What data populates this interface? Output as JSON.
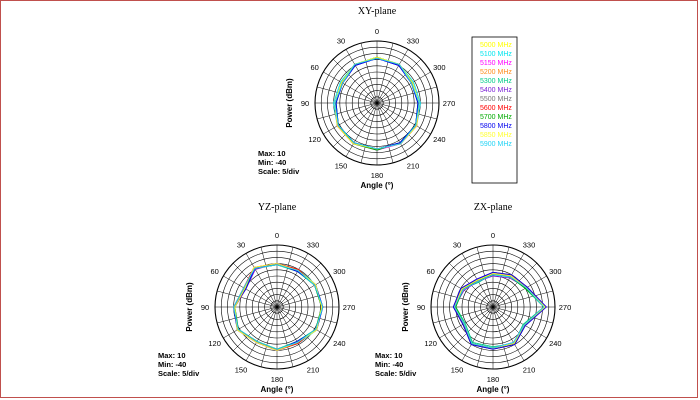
{
  "chart_data": [
    {
      "type": "polar",
      "title": "XY-plane",
      "angle_label": "Angle",
      "angle_unit": "(°)",
      "radial_label": "Power",
      "radial_unit": "(dBm)",
      "stats": {
        "max": "Max: 10",
        "min": "Min: -40",
        "scale": "Scale: 5/div"
      },
      "rlim": [
        -40,
        10
      ],
      "angle_ticks": [
        "0",
        "30",
        "60",
        "90",
        "120",
        "150",
        "180",
        "210",
        "240",
        "270",
        "300",
        "330"
      ],
      "angles": [
        0,
        30,
        60,
        90,
        120,
        150,
        180,
        210,
        240,
        270,
        300,
        330
      ],
      "series": [
        {
          "name": "5000 MHz",
          "values": [
            -3,
            -4,
            -7,
            -6,
            -3,
            -2,
            -3,
            -2,
            -3,
            -6,
            -7,
            -4
          ]
        },
        {
          "name": "5100 MHz",
          "values": [
            -3,
            -4,
            -6,
            -5,
            -3,
            -2,
            -3,
            -2,
            -3,
            -5,
            -6,
            -4
          ]
        },
        {
          "name": "5150 MHz",
          "values": [
            -4,
            -4,
            -7,
            -6,
            -3,
            -2,
            -2,
            -2,
            -3,
            -6,
            -7,
            -4
          ]
        },
        {
          "name": "5200 MHz",
          "values": [
            -3,
            -5,
            -7,
            -6,
            -4,
            -3,
            -3,
            -2,
            -4,
            -6,
            -7,
            -5
          ]
        },
        {
          "name": "5300 MHz",
          "values": [
            -4,
            -5,
            -8,
            -7,
            -4,
            -3,
            -3,
            -3,
            -4,
            -7,
            -8,
            -5
          ]
        },
        {
          "name": "5400 MHz",
          "values": [
            -4,
            -5,
            -8,
            -7,
            -3,
            -3,
            -2,
            -3,
            -3,
            -7,
            -8,
            -5
          ]
        },
        {
          "name": "5500 MHz",
          "values": [
            -3,
            -5,
            -7,
            -6,
            -4,
            -3,
            -3,
            -2,
            -4,
            -6,
            -7,
            -5
          ]
        },
        {
          "name": "5600 MHz",
          "values": [
            -4,
            -4,
            -8,
            -6,
            -3,
            -2,
            -3,
            -2,
            -3,
            -6,
            -8,
            -4
          ]
        },
        {
          "name": "5700 MHz",
          "values": [
            -3,
            -4,
            -7,
            -7,
            -4,
            -2,
            -2,
            -3,
            -4,
            -7,
            -7,
            -4
          ]
        },
        {
          "name": "5800 MHz",
          "values": [
            -4,
            -5,
            -8,
            -7,
            -4,
            -3,
            -3,
            -3,
            -4,
            -7,
            -8,
            -5
          ]
        },
        {
          "name": "5850 MHz",
          "values": [
            -3,
            -4,
            -7,
            -6,
            -3,
            -2,
            -3,
            -2,
            -3,
            -6,
            -7,
            -4
          ]
        },
        {
          "name": "5900 MHz",
          "values": [
            -4,
            -4,
            -8,
            -6,
            -4,
            -3,
            -3,
            -2,
            -4,
            -6,
            -8,
            -4
          ]
        }
      ]
    },
    {
      "type": "polar",
      "title": "YZ-plane",
      "angle_label": "Angle",
      "angle_unit": "(°)",
      "radial_label": "Power",
      "radial_unit": "(dBm)",
      "stats": {
        "max": "Max: 10",
        "min": "Min: -40",
        "scale": "Scale: 5/div"
      },
      "rlim": [
        -40,
        10
      ],
      "angle_ticks": [
        "0",
        "30",
        "60",
        "90",
        "120",
        "150",
        "180",
        "210",
        "240",
        "270",
        "300",
        "330"
      ],
      "angles": [
        0,
        30,
        60,
        90,
        120,
        150,
        180,
        210,
        240,
        270,
        300,
        330
      ],
      "series": [
        {
          "name": "5000 MHz",
          "values": [
            -5,
            -3,
            -10,
            -5,
            -3,
            -7,
            -5,
            -7,
            -3,
            -3,
            -4,
            -6
          ]
        },
        {
          "name": "5100 MHz",
          "values": [
            -5,
            -4,
            -9,
            -6,
            -3,
            -8,
            -5,
            -6,
            -3,
            -4,
            -4,
            -5
          ]
        },
        {
          "name": "5150 MHz",
          "values": [
            -6,
            -3,
            -10,
            -5,
            -4,
            -7,
            -6,
            -7,
            -4,
            -3,
            -5,
            -6
          ]
        },
        {
          "name": "5200 MHz",
          "values": [
            -5,
            -4,
            -11,
            -6,
            -3,
            -7,
            -5,
            -7,
            -3,
            -4,
            -4,
            -6
          ]
        },
        {
          "name": "5300 MHz",
          "values": [
            -6,
            -4,
            -10,
            -5,
            -4,
            -8,
            -6,
            -8,
            -4,
            -3,
            -5,
            -7
          ]
        },
        {
          "name": "5400 MHz",
          "values": [
            -5,
            -5,
            -11,
            -6,
            -4,
            -8,
            -5,
            -7,
            -4,
            -4,
            -5,
            -6
          ]
        },
        {
          "name": "5500 MHz",
          "values": [
            -6,
            -4,
            -10,
            -6,
            -3,
            -7,
            -6,
            -7,
            -3,
            -4,
            -4,
            -6
          ]
        },
        {
          "name": "5600 MHz",
          "values": [
            -5,
            -3,
            -9,
            -5,
            -4,
            -7,
            -5,
            -6,
            -4,
            -3,
            -5,
            -5
          ]
        },
        {
          "name": "5700 MHz",
          "values": [
            -6,
            -4,
            -10,
            -6,
            -4,
            -8,
            -6,
            -7,
            -4,
            -4,
            -5,
            -6
          ]
        },
        {
          "name": "5800 MHz",
          "values": [
            -5,
            -4,
            -11,
            -5,
            -3,
            -7,
            -5,
            -8,
            -3,
            -3,
            -4,
            -7
          ]
        },
        {
          "name": "5850 MHz",
          "values": [
            -5,
            -3,
            -10,
            -6,
            -3,
            -7,
            -5,
            -7,
            -3,
            -4,
            -4,
            -6
          ]
        },
        {
          "name": "5900 MHz",
          "values": [
            -6,
            -4,
            -9,
            -5,
            -4,
            -8,
            -6,
            -7,
            -4,
            -3,
            -5,
            -6
          ]
        }
      ]
    },
    {
      "type": "polar",
      "title": "ZX-plane",
      "angle_label": "Angle",
      "angle_unit": "(°)",
      "radial_label": "Power",
      "radial_unit": "(dBm)",
      "stats": {
        "max": "Max: 10",
        "min": "Min: -40",
        "scale": "Scale: 5/div"
      },
      "rlim": [
        -40,
        10
      ],
      "angle_ticks": [
        "0",
        "30",
        "60",
        "90",
        "120",
        "150",
        "180",
        "210",
        "240",
        "270",
        "300",
        "330"
      ],
      "angles": [
        0,
        30,
        60,
        90,
        120,
        150,
        180,
        210,
        240,
        270,
        300,
        330
      ],
      "series": [
        {
          "name": "5000 MHz",
          "values": [
            -12,
            -15,
            -10,
            -8,
            -12,
            -5,
            -6,
            -5,
            -10,
            2,
            -8,
            -10
          ]
        },
        {
          "name": "5100 MHz",
          "values": [
            -13,
            -16,
            -11,
            -9,
            -13,
            -6,
            -7,
            -6,
            -11,
            1,
            -9,
            -11
          ]
        },
        {
          "name": "5150 MHz",
          "values": [
            -12,
            -14,
            -10,
            -8,
            -12,
            -5,
            -6,
            -5,
            -10,
            3,
            -8,
            -10
          ]
        },
        {
          "name": "5200 MHz",
          "values": [
            -14,
            -15,
            -12,
            -9,
            -13,
            -6,
            -7,
            -6,
            -11,
            2,
            -9,
            -11
          ]
        },
        {
          "name": "5300 MHz",
          "values": [
            -13,
            -17,
            -11,
            -10,
            -14,
            -7,
            -8,
            -6,
            -12,
            1,
            -10,
            -12
          ]
        },
        {
          "name": "5400 MHz",
          "values": [
            -15,
            -16,
            -13,
            -9,
            -13,
            -6,
            -7,
            -7,
            -11,
            2,
            -9,
            -13
          ]
        },
        {
          "name": "5500 MHz",
          "values": [
            -12,
            -15,
            -10,
            -8,
            -12,
            -5,
            -6,
            -5,
            -10,
            2,
            -8,
            -10
          ]
        },
        {
          "name": "5600 MHz",
          "values": [
            -13,
            -16,
            -11,
            -9,
            -12,
            -6,
            -7,
            -6,
            -11,
            1,
            -9,
            -11
          ]
        },
        {
          "name": "5700 MHz",
          "values": [
            -14,
            -15,
            -12,
            -10,
            -13,
            -6,
            -7,
            -6,
            -11,
            2,
            -10,
            -12
          ]
        },
        {
          "name": "5800 MHz",
          "values": [
            -12,
            -14,
            -10,
            -8,
            -12,
            -5,
            -6,
            -5,
            -10,
            3,
            -8,
            -10
          ]
        },
        {
          "name": "5850 MHz",
          "values": [
            -13,
            -15,
            -11,
            -9,
            -13,
            -6,
            -7,
            -6,
            -11,
            2,
            -9,
            -11
          ]
        },
        {
          "name": "5900 MHz",
          "values": [
            -14,
            -16,
            -12,
            -9,
            -13,
            -6,
            -7,
            -7,
            -11,
            1,
            -9,
            -12
          ]
        }
      ]
    }
  ],
  "legend": {
    "items": [
      {
        "label": "5000 MHz",
        "color": "#ffff00"
      },
      {
        "label": "5100 MHz",
        "color": "#00e5ee"
      },
      {
        "label": "5150 MHz",
        "color": "#ff00ff"
      },
      {
        "label": "5200 MHz",
        "color": "#ff8c1a"
      },
      {
        "label": "5300 MHz",
        "color": "#00cc88"
      },
      {
        "label": "5400 MHz",
        "color": "#7a1fd6"
      },
      {
        "label": "5500 MHz",
        "color": "#777777"
      },
      {
        "label": "5600 MHz",
        "color": "#ff0000"
      },
      {
        "label": "5700 MHz",
        "color": "#00aa00"
      },
      {
        "label": "5800 MHz",
        "color": "#0000ee"
      },
      {
        "label": "5850 MHz",
        "color": "#ffff33"
      },
      {
        "label": "5900 MHz",
        "color": "#22d3f5"
      }
    ]
  },
  "colors": {
    "frame": "#c0504d",
    "grid": "#000000"
  }
}
